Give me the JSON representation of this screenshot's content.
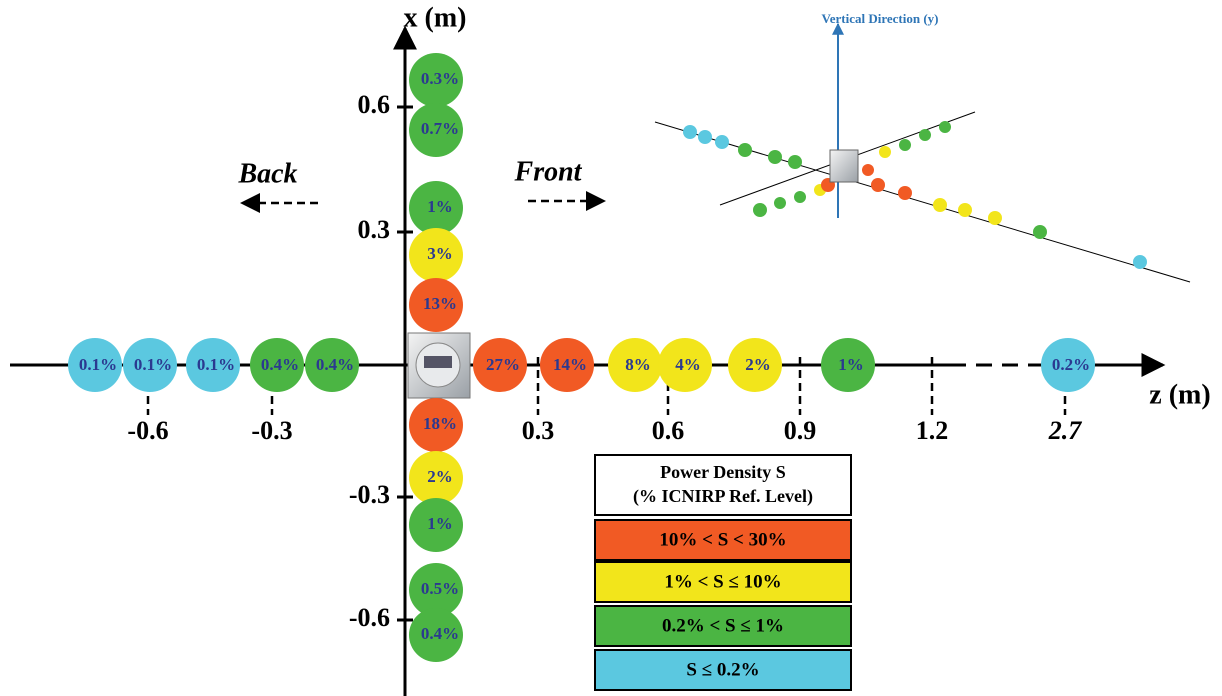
{
  "axes": {
    "x_label": "x (m)",
    "z_label": "z (m)",
    "x_ticks": [
      "0.6",
      "0.3",
      "-0.3",
      "-0.6"
    ],
    "z_ticks": [
      "-0.6",
      "-0.3",
      "0.3",
      "0.6",
      "0.9",
      "1.2",
      "2.7"
    ]
  },
  "directions": {
    "back": "Back",
    "front": "Front"
  },
  "x_points": [
    {
      "label": "0.3%",
      "color": "#4bb543"
    },
    {
      "label": "0.7%",
      "color": "#4bb543"
    },
    {
      "label": "1%",
      "color": "#4bb543"
    },
    {
      "label": "3%",
      "color": "#f2e51b"
    },
    {
      "label": "13%",
      "color": "#f15a24"
    },
    {
      "label": "18%",
      "color": "#f15a24"
    },
    {
      "label": "2%",
      "color": "#f2e51b"
    },
    {
      "label": "1%",
      "color": "#4bb543"
    },
    {
      "label": "0.5%",
      "color": "#4bb543"
    },
    {
      "label": "0.4%",
      "color": "#4bb543"
    }
  ],
  "z_points": [
    {
      "label": "0.1%",
      "color": "#5bc8e0"
    },
    {
      "label": "0.1%",
      "color": "#5bc8e0"
    },
    {
      "label": "0.1%",
      "color": "#5bc8e0"
    },
    {
      "label": "0.4%",
      "color": "#4bb543"
    },
    {
      "label": "0.4%",
      "color": "#4bb543"
    },
    {
      "label": "27%",
      "color": "#f15a24"
    },
    {
      "label": "14%",
      "color": "#f15a24"
    },
    {
      "label": "8%",
      "color": "#f2e51b"
    },
    {
      "label": "4%",
      "color": "#f2e51b"
    },
    {
      "label": "2%",
      "color": "#f2e51b"
    },
    {
      "label": "1%",
      "color": "#4bb543"
    },
    {
      "label": "0.2%",
      "color": "#5bc8e0"
    }
  ],
  "legend": {
    "title": [
      "Power Density S",
      "(% ICNIRP Ref. Level)"
    ],
    "items": [
      {
        "label": "10% < S < 30%",
        "color": "#f15a24"
      },
      {
        "label": "1% < S ≤ 10%",
        "color": "#f2e51b"
      },
      {
        "label": "0.2% < S ≤ 1%",
        "color": "#4bb543"
      },
      {
        "label": "S ≤ 0.2%",
        "color": "#5bc8e0"
      }
    ]
  },
  "inset": {
    "title": "Vertical Direction (y)"
  }
}
